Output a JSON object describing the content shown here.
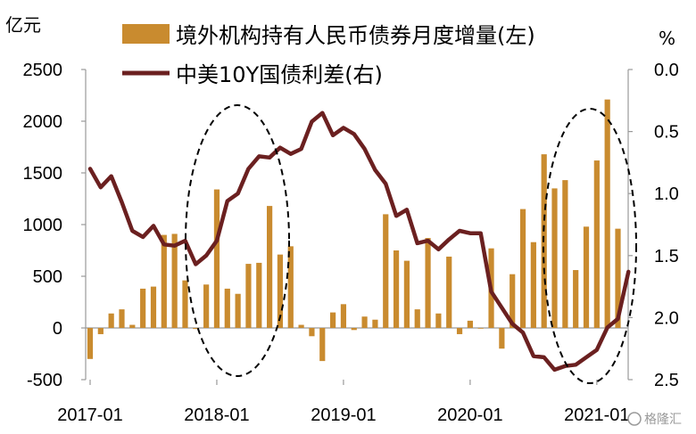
{
  "chart_data": {
    "type": "bar+line",
    "left_axis": {
      "unit_label": "亿元",
      "ticks": [
        "2500",
        "2000",
        "1500",
        "1000",
        "500",
        "0",
        "-500"
      ],
      "ylim": [
        -500,
        2500
      ]
    },
    "right_axis": {
      "unit_label": "%",
      "ticks": [
        "0.0",
        "0.5",
        "1.0",
        "1.5",
        "2.0",
        "2.5"
      ],
      "ylim": [
        0.0,
        2.5
      ],
      "inverted": true
    },
    "x_ticks": [
      "2017-01",
      "2018-01",
      "2019-01",
      "2020-01",
      "2021-01"
    ],
    "x_range": [
      "2017-01",
      "2021-05"
    ],
    "legend": [
      {
        "label": "境外机构持有人民币债券月度增量(左)",
        "kind": "bar",
        "color": "#c98b2f"
      },
      {
        "label": "中美10Y国债利差(右)",
        "kind": "line",
        "color": "#6b2020"
      }
    ],
    "series": [
      {
        "name": "境外机构持有人民币债券月度增量(左)",
        "axis": "left",
        "values": [
          -300,
          -60,
          140,
          180,
          30,
          380,
          400,
          900,
          910,
          460,
          -10,
          420,
          1340,
          380,
          330,
          620,
          630,
          1180,
          710,
          790,
          30,
          -80,
          -320,
          150,
          230,
          -20,
          110,
          80,
          1100,
          750,
          650,
          180,
          870,
          140,
          690,
          -60,
          70,
          0,
          770,
          -200,
          520,
          1150,
          830,
          1680,
          1350,
          1430,
          560,
          980,
          1620,
          2210,
          960
        ]
      },
      {
        "name": "中美10Y国债利差(右)",
        "axis": "right",
        "values": [
          0.8,
          0.95,
          0.86,
          1.07,
          1.3,
          1.35,
          1.26,
          1.41,
          1.42,
          1.38,
          1.57,
          1.5,
          1.38,
          1.06,
          1.0,
          0.8,
          0.7,
          0.71,
          0.63,
          0.68,
          0.64,
          0.42,
          0.35,
          0.53,
          0.47,
          0.52,
          0.64,
          0.81,
          0.92,
          1.18,
          1.13,
          1.4,
          1.38,
          1.45,
          1.37,
          1.3,
          1.32,
          1.32,
          1.79,
          1.92,
          2.05,
          2.12,
          2.31,
          2.32,
          2.42,
          2.39,
          2.38,
          2.32,
          2.26,
          2.08,
          2.01,
          1.63
        ]
      }
    ]
  },
  "watermark": "格隆汇"
}
